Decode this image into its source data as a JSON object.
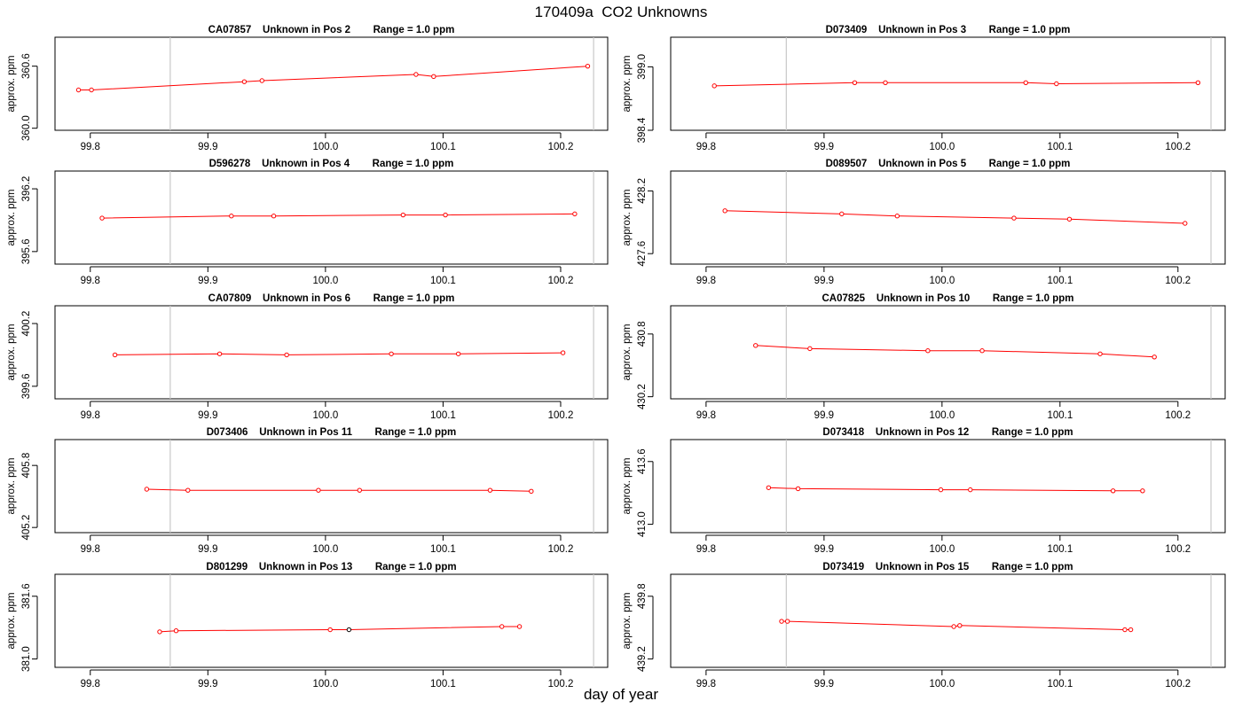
{
  "figure": {
    "title": "170409a  CO2 Unknowns",
    "xlabel": "day of year"
  },
  "colors": {
    "series": "#ff0000",
    "highlight_point": "#000000",
    "reference_line": "#c8c8c8",
    "axis": "#000000"
  },
  "chart_data": [
    {
      "type": "line",
      "title": "CA07857    Unknown in Pos 2        Range = 1.0 ppm",
      "xlabel": "day of year",
      "ylabel": "approx. ppm",
      "xlim": [
        99.77,
        100.24
      ],
      "ylim": [
        359.98,
        360.88
      ],
      "x_ticks": [
        99.8,
        99.9,
        100.0,
        100.1,
        100.2
      ],
      "x_tick_labels": [
        "99.8",
        "99.9",
        "100.0",
        "100.1",
        "100.2"
      ],
      "y_ticks": [
        360.0,
        360.6
      ],
      "y_tick_labels": [
        "360.0",
        "360.6"
      ],
      "vlines": [
        99.868,
        100.228
      ],
      "grid": false,
      "series": [
        {
          "x": [
            99.79,
            99.801,
            99.931,
            99.946,
            100.077,
            100.092,
            100.223
          ],
          "y": [
            360.37,
            360.37,
            360.45,
            360.46,
            360.52,
            360.5,
            360.6
          ]
        }
      ]
    },
    {
      "type": "line",
      "title": "D073409    Unknown in Pos 3        Range = 1.0 ppm",
      "xlabel": "day of year",
      "ylabel": "approx. ppm",
      "xlim": [
        99.77,
        100.24
      ],
      "ylim": [
        398.4,
        399.28
      ],
      "x_ticks": [
        99.8,
        99.9,
        100.0,
        100.1,
        100.2
      ],
      "x_tick_labels": [
        "99.8",
        "99.9",
        "100.0",
        "100.1",
        "100.2"
      ],
      "y_ticks": [
        398.4,
        399.0
      ],
      "y_tick_labels": [
        "398.4",
        "399.0"
      ],
      "vlines": [
        99.868,
        100.228
      ],
      "grid": false,
      "series": [
        {
          "x": [
            99.807,
            99.926,
            99.952,
            100.071,
            100.097,
            100.217
          ],
          "y": [
            398.82,
            398.85,
            398.85,
            398.85,
            398.84,
            398.85
          ]
        }
      ]
    },
    {
      "type": "line",
      "title": "D596278    Unknown in Pos 4        Range = 1.0 ppm",
      "xlabel": "day of year",
      "ylabel": "approx. ppm",
      "xlim": [
        99.77,
        100.24
      ],
      "ylim": [
        395.48,
        396.37
      ],
      "x_ticks": [
        99.8,
        99.9,
        100.0,
        100.1,
        100.2
      ],
      "x_tick_labels": [
        "99.8",
        "99.9",
        "100.0",
        "100.1",
        "100.2"
      ],
      "y_ticks": [
        395.6,
        396.2
      ],
      "y_tick_labels": [
        "395.6",
        "396.2"
      ],
      "vlines": [
        99.868,
        100.228
      ],
      "grid": false,
      "series": [
        {
          "x": [
            99.81,
            99.92,
            99.956,
            100.066,
            100.102,
            100.212
          ],
          "y": [
            395.92,
            395.94,
            395.94,
            395.95,
            395.95,
            395.96
          ]
        }
      ]
    },
    {
      "type": "line",
      "title": "D089507    Unknown in Pos 5        Range = 1.0 ppm",
      "xlabel": "day of year",
      "ylabel": "approx. ppm",
      "xlim": [
        99.77,
        100.24
      ],
      "ylim": [
        427.5,
        428.39
      ],
      "x_ticks": [
        99.8,
        99.9,
        100.0,
        100.1,
        100.2
      ],
      "x_tick_labels": [
        "99.8",
        "99.9",
        "100.0",
        "100.1",
        "100.2"
      ],
      "y_ticks": [
        427.6,
        428.2
      ],
      "y_tick_labels": [
        "427.6",
        "428.2"
      ],
      "vlines": [
        99.868,
        100.228
      ],
      "grid": false,
      "series": [
        {
          "x": [
            99.816,
            99.915,
            99.962,
            100.061,
            100.108,
            100.206
          ],
          "y": [
            428.01,
            427.98,
            427.96,
            427.94,
            427.93,
            427.89
          ]
        }
      ]
    },
    {
      "type": "line",
      "title": "CA07809    Unknown in Pos 6        Range = 1.0 ppm",
      "xlabel": "day of year",
      "ylabel": "approx. ppm",
      "xlim": [
        99.77,
        100.24
      ],
      "ylim": [
        399.48,
        400.37
      ],
      "x_ticks": [
        99.8,
        99.9,
        100.0,
        100.1,
        100.2
      ],
      "x_tick_labels": [
        "99.8",
        "99.9",
        "100.0",
        "100.1",
        "100.2"
      ],
      "y_ticks": [
        399.6,
        400.2
      ],
      "y_tick_labels": [
        "399.6",
        "400.2"
      ],
      "vlines": [
        99.868,
        100.228
      ],
      "grid": false,
      "series": [
        {
          "x": [
            99.821,
            99.91,
            99.967,
            100.056,
            100.113,
            100.202
          ],
          "y": [
            399.9,
            399.91,
            399.9,
            399.91,
            399.91,
            399.92
          ]
        }
      ]
    },
    {
      "type": "line",
      "title": "CA07825    Unknown in Pos 10        Range = 1.0 ppm",
      "xlabel": "day of year",
      "ylabel": "approx. ppm",
      "xlim": [
        99.77,
        100.24
      ],
      "ylim": [
        430.18,
        431.07
      ],
      "x_ticks": [
        99.8,
        99.9,
        100.0,
        100.1,
        100.2
      ],
      "x_tick_labels": [
        "99.8",
        "99.9",
        "100.0",
        "100.1",
        "100.2"
      ],
      "y_ticks": [
        430.2,
        430.8
      ],
      "y_tick_labels": [
        "430.2",
        "430.8"
      ],
      "vlines": [
        99.868,
        100.228
      ],
      "grid": false,
      "series": [
        {
          "x": [
            99.842,
            99.888,
            99.988,
            100.034,
            100.134,
            100.18
          ],
          "y": [
            430.69,
            430.66,
            430.64,
            430.64,
            430.61,
            430.58
          ]
        }
      ]
    },
    {
      "type": "line",
      "title": "D073406    Unknown in Pos 11        Range = 1.0 ppm",
      "xlabel": "day of year",
      "ylabel": "approx. ppm",
      "xlim": [
        99.77,
        100.24
      ],
      "ylim": [
        405.15,
        406.05
      ],
      "x_ticks": [
        99.8,
        99.9,
        100.0,
        100.1,
        100.2
      ],
      "x_tick_labels": [
        "99.8",
        "99.9",
        "100.0",
        "100.1",
        "100.2"
      ],
      "y_ticks": [
        405.2,
        405.8
      ],
      "y_tick_labels": [
        "405.2",
        "405.8"
      ],
      "vlines": [
        99.868,
        100.228
      ],
      "grid": false,
      "series": [
        {
          "x": [
            99.848,
            99.883,
            99.994,
            100.029,
            100.14,
            100.175
          ],
          "y": [
            405.57,
            405.56,
            405.56,
            405.56,
            405.56,
            405.55
          ]
        }
      ]
    },
    {
      "type": "line",
      "title": "D073418    Unknown in Pos 12        Range = 1.0 ppm",
      "xlabel": "day of year",
      "ylabel": "approx. ppm",
      "xlim": [
        99.77,
        100.24
      ],
      "ylim": [
        412.92,
        413.81
      ],
      "x_ticks": [
        99.8,
        99.9,
        100.0,
        100.1,
        100.2
      ],
      "x_tick_labels": [
        "99.8",
        "99.9",
        "100.0",
        "100.1",
        "100.2"
      ],
      "y_ticks": [
        413.0,
        413.6
      ],
      "y_tick_labels": [
        "413.0",
        "413.6"
      ],
      "vlines": [
        99.868,
        100.228
      ],
      "grid": false,
      "series": [
        {
          "x": [
            99.853,
            99.878,
            99.999,
            100.024,
            100.145,
            100.17
          ],
          "y": [
            413.35,
            413.34,
            413.33,
            413.33,
            413.32,
            413.32
          ]
        }
      ]
    },
    {
      "type": "line",
      "title": "D801299    Unknown in Pos 13        Range = 1.0 ppm",
      "xlabel": "day of year",
      "ylabel": "approx. ppm",
      "xlim": [
        99.77,
        100.24
      ],
      "ylim": [
        380.92,
        381.81
      ],
      "x_ticks": [
        99.8,
        99.9,
        100.0,
        100.1,
        100.2
      ],
      "x_tick_labels": [
        "99.8",
        "99.9",
        "100.0",
        "100.1",
        "100.2"
      ],
      "y_ticks": [
        381.0,
        381.6
      ],
      "y_tick_labels": [
        "381.0",
        "381.6"
      ],
      "vlines": [
        99.868,
        100.228
      ],
      "grid": false,
      "series": [
        {
          "x": [
            99.859,
            99.873,
            100.004,
            100.02,
            100.15,
            100.165
          ],
          "y": [
            381.26,
            381.27,
            381.28,
            381.28,
            381.31,
            381.31
          ]
        }
      ],
      "highlight_x": [
        100.02
      ]
    },
    {
      "type": "line",
      "title": "D073419    Unknown in Pos 15        Range = 1.0 ppm",
      "xlabel": "day of year",
      "ylabel": "approx. ppm",
      "xlim": [
        99.77,
        100.24
      ],
      "ylim": [
        439.12,
        440.01
      ],
      "x_ticks": [
        99.8,
        99.9,
        100.0,
        100.1,
        100.2
      ],
      "x_tick_labels": [
        "99.8",
        "99.9",
        "100.0",
        "100.1",
        "100.2"
      ],
      "y_ticks": [
        439.2,
        439.8
      ],
      "y_tick_labels": [
        "439.2",
        "439.8"
      ],
      "vlines": [
        99.868,
        100.228
      ],
      "grid": false,
      "series": [
        {
          "x": [
            99.864,
            99.869,
            100.01,
            100.015,
            100.155,
            100.16
          ],
          "y": [
            439.56,
            439.56,
            439.51,
            439.52,
            439.48,
            439.48
          ]
        }
      ]
    }
  ]
}
